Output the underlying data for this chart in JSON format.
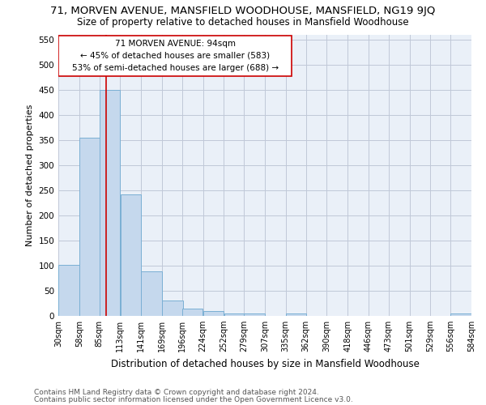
{
  "title_line1": "71, MORVEN AVENUE, MANSFIELD WOODHOUSE, MANSFIELD, NG19 9JQ",
  "title_line2": "Size of property relative to detached houses in Mansfield Woodhouse",
  "xlabel": "Distribution of detached houses by size in Mansfield Woodhouse",
  "ylabel": "Number of detached properties",
  "footer_line1": "Contains HM Land Registry data © Crown copyright and database right 2024.",
  "footer_line2": "Contains public sector information licensed under the Open Government Licence v3.0.",
  "annotation_line1": "71 MORVEN AVENUE: 94sqm",
  "annotation_line2": "← 45% of detached houses are smaller (583)",
  "annotation_line3": "53% of semi-detached houses are larger (688) →",
  "bins": [
    30,
    58,
    85,
    113,
    141,
    169,
    196,
    224,
    252,
    279,
    307,
    335,
    362,
    390,
    418,
    446,
    473,
    501,
    529,
    556,
    584
  ],
  "bar_heights": [
    102,
    355,
    449,
    242,
    88,
    30,
    14,
    9,
    5,
    5,
    0,
    5,
    0,
    0,
    0,
    0,
    0,
    0,
    0,
    5
  ],
  "bar_color": "#c5d8ed",
  "bar_edge_color": "#7aafd4",
  "vline_color": "#cc0000",
  "vline_x": 94,
  "ylim": [
    0,
    560
  ],
  "yticks": [
    0,
    50,
    100,
    150,
    200,
    250,
    300,
    350,
    400,
    450,
    500,
    550
  ],
  "grid_color": "#c0c8d8",
  "bg_color": "#eaf0f8",
  "annotation_box_color": "#cc0000",
  "title1_fontsize": 9.5,
  "title2_fontsize": 8.5,
  "tick_label_fontsize": 7,
  "ylabel_fontsize": 8,
  "xlabel_fontsize": 8.5,
  "footer_fontsize": 6.5,
  "annotation_fontsize": 7.5
}
